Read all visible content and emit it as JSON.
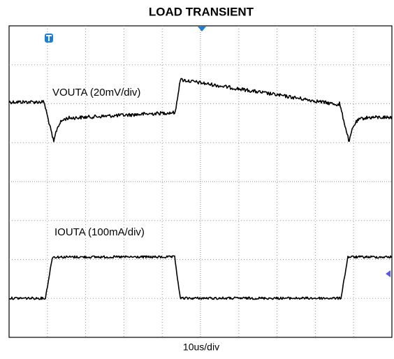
{
  "title": "LOAD TRANSIENT",
  "traces": [
    {
      "label": "VOUTA (20mV/div)"
    },
    {
      "label": "IOUTA  (100mA/div)"
    }
  ],
  "time_scale": "10us/div"
}
